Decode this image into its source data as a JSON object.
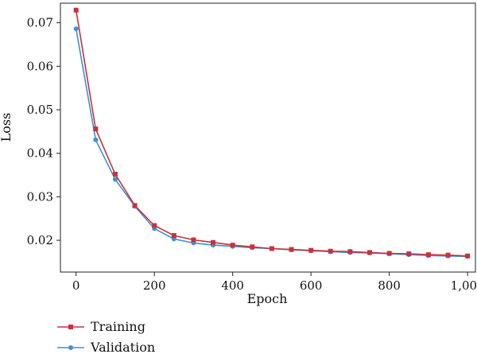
{
  "colors": {
    "training": "#c8323a",
    "validation": "#3a93d6"
  },
  "chart_data": {
    "type": "line",
    "title": "",
    "xlabel": "Epoch",
    "ylabel": "Loss",
    "xlim": [
      -40,
      1020
    ],
    "ylim": [
      0.0127,
      0.0745
    ],
    "xticks": [
      0,
      200,
      400,
      600,
      800,
      1000
    ],
    "xtick_labels": [
      "0",
      "200",
      "400",
      "600",
      "800",
      "1,000"
    ],
    "yticks": [
      0.02,
      0.03,
      0.04,
      0.05,
      0.06,
      0.07
    ],
    "ytick_labels": [
      "0.02",
      "0.03",
      "0.04",
      "0.05",
      "0.06",
      "0.07"
    ],
    "grid": false,
    "legend_position": "bottom-left",
    "x": [
      0,
      50,
      100,
      150,
      200,
      250,
      300,
      350,
      400,
      450,
      500,
      550,
      600,
      650,
      700,
      750,
      800,
      850,
      900,
      950,
      1000
    ],
    "series": [
      {
        "name": "Training",
        "marker": "square",
        "values": [
          0.0729,
          0.0456,
          0.0352,
          0.028,
          0.0234,
          0.0211,
          0.0201,
          0.0195,
          0.0189,
          0.0185,
          0.0181,
          0.0179,
          0.0177,
          0.0175,
          0.0174,
          0.0172,
          0.017,
          0.0169,
          0.0167,
          0.0166,
          0.0164
        ]
      },
      {
        "name": "Validation",
        "marker": "circle",
        "values": [
          0.0686,
          0.0431,
          0.034,
          0.0278,
          0.0227,
          0.0203,
          0.0194,
          0.0189,
          0.0186,
          0.0183,
          0.0181,
          0.0178,
          0.0176,
          0.0174,
          0.0172,
          0.0171,
          0.0169,
          0.0167,
          0.0165,
          0.0164,
          0.0163
        ]
      }
    ]
  }
}
